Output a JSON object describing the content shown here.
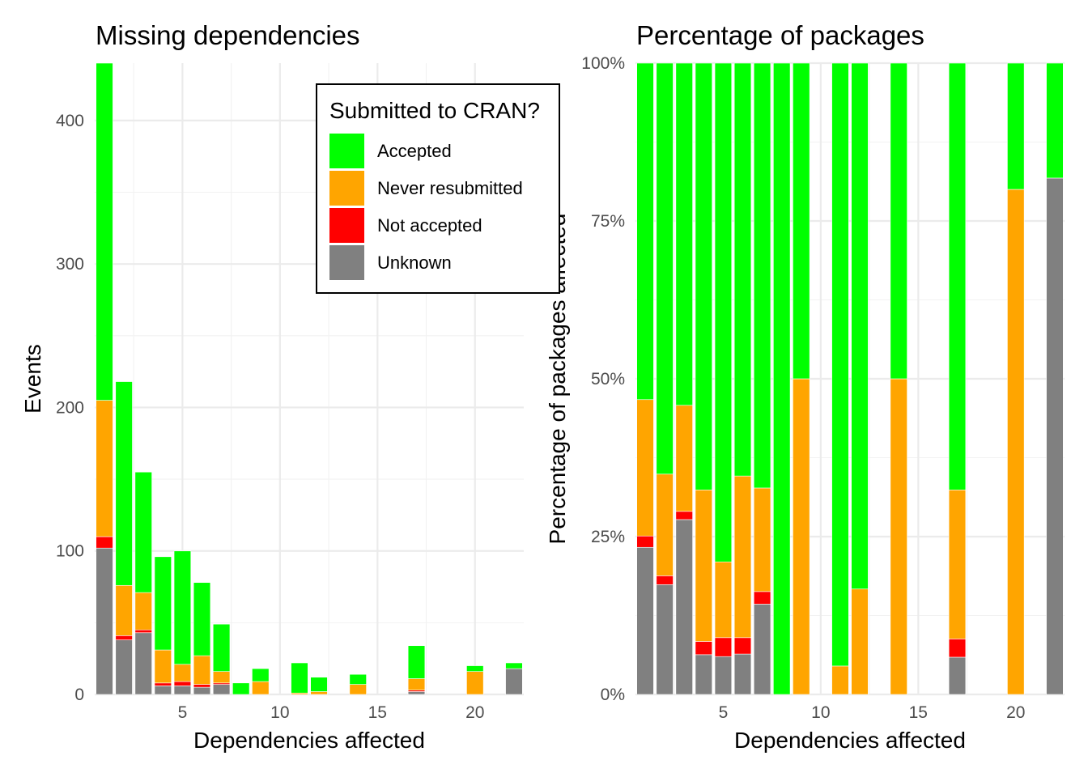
{
  "chart_data": [
    {
      "type": "bar",
      "stacked": true,
      "title": "Missing dependencies",
      "xlabel": "Dependencies affected",
      "ylabel": "Events",
      "xlim": [
        0.5,
        22.5
      ],
      "ylim": [
        0,
        440
      ],
      "xticks": [
        5,
        10,
        15,
        20
      ],
      "yticks": [
        0,
        100,
        200,
        300,
        400
      ],
      "grid": true,
      "x": [
        1,
        2,
        3,
        4,
        5,
        6,
        7,
        8,
        9,
        11,
        12,
        14,
        17,
        20,
        22
      ],
      "series": [
        {
          "name": "Unknown",
          "color": "#808080",
          "values": [
            102,
            38,
            43,
            6,
            6,
            5,
            7,
            0,
            0,
            0,
            0,
            0,
            2,
            0,
            18
          ]
        },
        {
          "name": "Not accepted",
          "color": "#ff0000",
          "values": [
            8,
            3,
            2,
            2,
            3,
            2,
            1,
            0,
            0,
            0,
            0,
            0,
            1,
            0,
            0
          ]
        },
        {
          "name": "Never resubmitted",
          "color": "#ffa500",
          "values": [
            95,
            35,
            26,
            23,
            12,
            20,
            8,
            0,
            9,
            1,
            2,
            7,
            8,
            16,
            0
          ]
        },
        {
          "name": "Accepted",
          "color": "#00ff00",
          "values": [
            235,
            142,
            84,
            65,
            79,
            51,
            33,
            8,
            9,
            21,
            10,
            7,
            23,
            4,
            4
          ]
        }
      ],
      "legend": {
        "title": "Submitted to CRAN?",
        "position": "top-right",
        "entries": [
          {
            "label": "Accepted",
            "color": "#00ff00"
          },
          {
            "label": "Never resubmitted",
            "color": "#ffa500"
          },
          {
            "label": "Not accepted",
            "color": "#ff0000"
          },
          {
            "label": "Unknown",
            "color": "#808080"
          }
        ]
      }
    },
    {
      "type": "bar",
      "stacked": true,
      "percent": true,
      "title": "Percentage of packages",
      "xlabel": "Dependencies affected",
      "ylabel": "Percentage of packages affected",
      "xlim": [
        0.5,
        22.5
      ],
      "ylim": [
        0,
        1
      ],
      "xticks": [
        5,
        10,
        15,
        20
      ],
      "yticks": [
        0,
        0.25,
        0.5,
        0.75,
        1
      ],
      "ytick_labels": [
        "0%",
        "25%",
        "50%",
        "75%",
        "100%"
      ],
      "grid": true,
      "x": [
        1,
        2,
        3,
        4,
        5,
        6,
        7,
        8,
        9,
        11,
        12,
        14,
        17,
        20,
        22
      ],
      "series": [
        {
          "name": "Unknown",
          "color": "#808080",
          "values": [
            0.233,
            0.174,
            0.277,
            0.063,
            0.06,
            0.064,
            0.143,
            0,
            0,
            0,
            0,
            0,
            0.059,
            0,
            0.818
          ]
        },
        {
          "name": "Not accepted",
          "color": "#ff0000",
          "values": [
            0.018,
            0.014,
            0.013,
            0.021,
            0.03,
            0.026,
            0.02,
            0,
            0,
            0,
            0,
            0,
            0.029,
            0,
            0
          ]
        },
        {
          "name": "Never resubmitted",
          "color": "#ffa500",
          "values": [
            0.216,
            0.161,
            0.168,
            0.24,
            0.12,
            0.256,
            0.164,
            0,
            0.5,
            0.045,
            0.167,
            0.5,
            0.236,
            0.8,
            0
          ]
        },
        {
          "name": "Accepted",
          "color": "#00ff00",
          "values": [
            0.533,
            0.651,
            0.542,
            0.676,
            0.79,
            0.654,
            0.673,
            1,
            0.5,
            0.955,
            0.833,
            0.5,
            0.676,
            0.2,
            0.182
          ]
        }
      ]
    }
  ]
}
